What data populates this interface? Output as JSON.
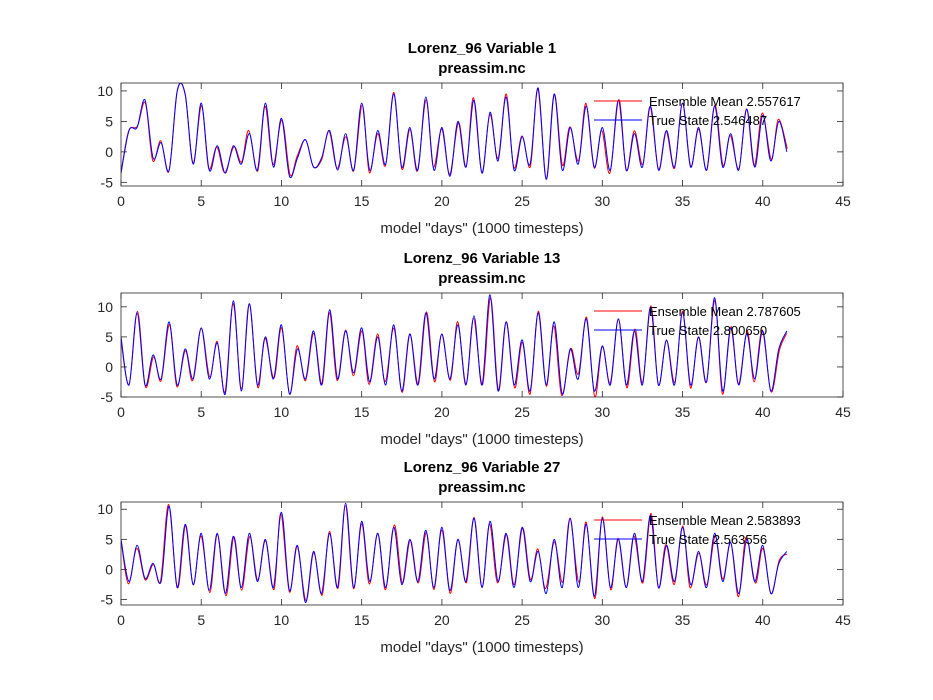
{
  "chart_data": [
    {
      "type": "line",
      "title": "Lorenz_96 Variable 1",
      "subtitle": "preassim.nc",
      "xlabel": "model \"days\" (1000 timesteps)",
      "ylabel": "",
      "xlim": [
        0,
        45
      ],
      "ylim": [
        -5.6,
        11.3
      ],
      "xticks": [
        0,
        5,
        10,
        15,
        20,
        25,
        30,
        35,
        40,
        45
      ],
      "yticks": [
        -5,
        0,
        5,
        10
      ],
      "grid": false,
      "legend_position": "top-right",
      "seed": 11,
      "series": [
        {
          "name": "Ensemble Mean 2.557617",
          "color": "#ff0000"
        },
        {
          "name": "True State 2.546487",
          "color": "#0000ff"
        }
      ],
      "x": [
        0,
        0.5,
        1,
        1.5,
        2,
        2.5,
        3,
        3.5,
        4,
        4.5,
        5,
        5.5,
        6,
        6.5,
        7,
        7.5,
        8,
        8.5,
        9,
        9.5,
        10,
        10.5,
        11,
        11.5,
        12,
        12.5,
        13,
        13.5,
        14,
        14.5,
        15,
        15.5,
        16,
        16.5,
        17,
        17.5,
        18,
        18.5,
        19,
        19.5,
        20,
        20.5,
        21,
        21.5,
        22,
        22.5,
        23,
        23.5,
        24,
        24.5,
        25,
        25.5,
        26,
        26.5,
        27,
        27.5,
        28,
        28.5,
        29,
        29.5,
        30,
        30.5,
        31,
        31.5,
        32,
        32.5,
        33,
        33.5,
        34,
        34.5,
        35,
        35.5,
        36,
        36.5,
        37,
        37.5,
        38,
        38.5,
        39,
        39.5,
        40,
        40.5,
        41,
        41.5
      ],
      "true_values": [
        -3.5,
        3.5,
        4,
        8.5,
        -1,
        1.5,
        -3,
        10,
        9.5,
        -2,
        8,
        -3,
        1,
        -3.5,
        1,
        -2,
        3,
        -3,
        8,
        -2.5,
        5.5,
        -4,
        -1,
        2,
        -2.5,
        -1,
        3.5,
        -3,
        3,
        -3,
        8,
        -3,
        3.5,
        -2,
        9.5,
        -2.5,
        4,
        -3,
        9,
        -3,
        4,
        -4,
        5,
        -2.5,
        8.5,
        -3.5,
        6.5,
        -1.5,
        9,
        -3,
        2.5,
        -2,
        10.5,
        -4.5,
        9.5,
        -3,
        4,
        -2,
        7.5,
        -2.5,
        4,
        -3,
        8.5,
        -3,
        3,
        -2.5,
        7.5,
        -3,
        3.5,
        -2.5,
        8,
        -2.5,
        4,
        -3,
        7.5,
        -2.5,
        3,
        -3,
        7,
        -2.5,
        6,
        -1.5,
        5,
        0
      ]
    },
    {
      "type": "line",
      "title": "Lorenz_96 Variable 13",
      "subtitle": "preassim.nc",
      "xlabel": "model \"days\" (1000 timesteps)",
      "ylabel": "",
      "xlim": [
        0,
        45
      ],
      "ylim": [
        -5,
        12.3
      ],
      "xticks": [
        0,
        5,
        10,
        15,
        20,
        25,
        30,
        35,
        40,
        45
      ],
      "yticks": [
        -5,
        0,
        5,
        10
      ],
      "grid": false,
      "legend_position": "top-right",
      "seed": 23,
      "series": [
        {
          "name": "Ensemble Mean 2.787605",
          "color": "#ff0000"
        },
        {
          "name": "True State 2.800650",
          "color": "#0000ff"
        }
      ],
      "x": [
        0,
        0.5,
        1,
        1.5,
        2,
        2.5,
        3,
        3.5,
        4,
        4.5,
        5,
        5.5,
        6,
        6.5,
        7,
        7.5,
        8,
        8.5,
        9,
        9.5,
        10,
        10.5,
        11,
        11.5,
        12,
        12.5,
        13,
        13.5,
        14,
        14.5,
        15,
        15.5,
        16,
        16.5,
        17,
        17.5,
        18,
        18.5,
        19,
        19.5,
        20,
        20.5,
        21,
        21.5,
        22,
        22.5,
        23,
        23.5,
        24,
        24.5,
        25,
        25.5,
        26,
        26.5,
        27,
        27.5,
        28,
        28.5,
        29,
        29.5,
        30,
        30.5,
        31,
        31.5,
        32,
        32.5,
        33,
        33.5,
        34,
        34.5,
        35,
        35.5,
        36,
        36.5,
        37,
        37.5,
        38,
        38.5,
        39,
        39.5,
        40,
        40.5,
        41,
        41.5
      ],
      "true_values": [
        5,
        -3,
        9,
        -3,
        2,
        -2,
        7.5,
        -3,
        3,
        -2,
        6.5,
        -2,
        4,
        -4.5,
        11,
        -4,
        10.5,
        -3,
        5,
        -2,
        7,
        -4.5,
        3,
        -2,
        6,
        -3,
        9.5,
        -2,
        6,
        -1,
        6.5,
        -2.5,
        5,
        -3,
        7,
        -4,
        5.5,
        -3,
        9,
        -2,
        5.5,
        -2,
        7,
        -3,
        8.5,
        -3,
        12,
        -4,
        7.5,
        -3,
        4.5,
        -4,
        9,
        -3,
        7.5,
        -4.5,
        3,
        -2,
        8,
        -4,
        3.5,
        -3,
        8,
        -3,
        6,
        -3,
        10,
        -3,
        4.5,
        -3,
        9,
        -3,
        5,
        -2.5,
        11.5,
        -4,
        6.5,
        -3,
        5.5,
        -2,
        6,
        -4,
        3,
        6
      ]
    },
    {
      "type": "line",
      "title": "Lorenz_96 Variable 27",
      "subtitle": "preassim.nc",
      "xlabel": "model \"days\" (1000 timesteps)",
      "ylabel": "",
      "xlim": [
        0,
        45
      ],
      "ylim": [
        -5.9,
        11.2
      ],
      "xticks": [
        0,
        5,
        10,
        15,
        20,
        25,
        30,
        35,
        40,
        45
      ],
      "yticks": [
        -5,
        0,
        5,
        10
      ],
      "grid": false,
      "legend_position": "top-right",
      "seed": 37,
      "series": [
        {
          "name": "Ensemble Mean 2.583893",
          "color": "#ff0000"
        },
        {
          "name": "True State 2.563556",
          "color": "#0000ff"
        }
      ],
      "x": [
        0,
        0.5,
        1,
        1.5,
        2,
        2.5,
        3,
        3.5,
        4,
        4.5,
        5,
        5.5,
        6,
        6.5,
        7,
        7.5,
        8,
        8.5,
        9,
        9.5,
        10,
        10.5,
        11,
        11.5,
        12,
        12.5,
        13,
        13.5,
        14,
        14.5,
        15,
        15.5,
        16,
        16.5,
        17,
        17.5,
        18,
        18.5,
        19,
        19.5,
        20,
        20.5,
        21,
        21.5,
        22,
        22.5,
        23,
        23.5,
        24,
        24.5,
        25,
        25.5,
        26,
        26.5,
        27,
        27.5,
        28,
        28.5,
        29,
        29.5,
        30,
        30.5,
        31,
        31.5,
        32,
        32.5,
        33,
        33.5,
        34,
        34.5,
        35,
        35.5,
        36,
        36.5,
        37,
        37.5,
        38,
        38.5,
        39,
        39.5,
        40,
        40.5,
        41,
        41.5
      ],
      "true_values": [
        5,
        -2,
        4,
        -1.5,
        1,
        -2,
        10.5,
        -3,
        7.5,
        -2.5,
        6,
        -3.5,
        6,
        -4,
        5.5,
        -3,
        6,
        -2,
        5,
        -3,
        9.5,
        -3.5,
        4,
        -5.5,
        3,
        -4,
        6,
        -3,
        11,
        -3,
        8,
        -2,
        6,
        -3,
        7,
        -2.5,
        5,
        -2,
        6.5,
        -3,
        7,
        -3.5,
        5,
        -2,
        8.5,
        -3,
        8,
        -2,
        6,
        -3,
        7,
        -2,
        3,
        -4,
        5,
        -3,
        8.5,
        -3,
        7.5,
        -4.5,
        8.5,
        -3,
        5,
        -3,
        6,
        -2,
        9,
        -3,
        4,
        -2,
        7,
        -2.5,
        3,
        -3,
        6,
        -2,
        4.5,
        -4,
        5,
        -2,
        4,
        -4,
        1,
        3
      ]
    }
  ]
}
